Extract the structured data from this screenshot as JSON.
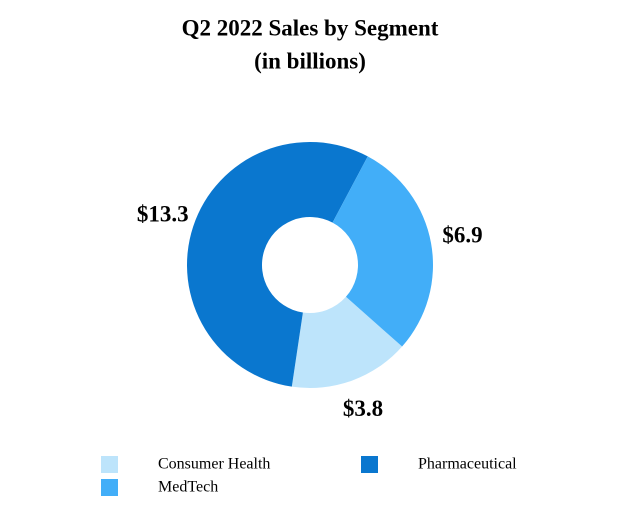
{
  "chart_data": {
    "type": "donut",
    "title": "Q2 2022 Sales by Segment",
    "subtitle": "(in billions)",
    "series": [
      {
        "name": "Consumer Health",
        "color": "#bde4fb",
        "values": [
          3.8
        ],
        "value_labels": [
          "$3.8"
        ]
      },
      {
        "name": "Pharmaceutical",
        "color": "#0a77cf",
        "values": [
          13.3
        ],
        "value_labels": [
          "$13.3"
        ]
      },
      {
        "name": "MedTech",
        "color": "#42aef8",
        "values": [
          6.9
        ],
        "value_labels": [
          "$6.9"
        ]
      }
    ],
    "legend": "bottom"
  }
}
